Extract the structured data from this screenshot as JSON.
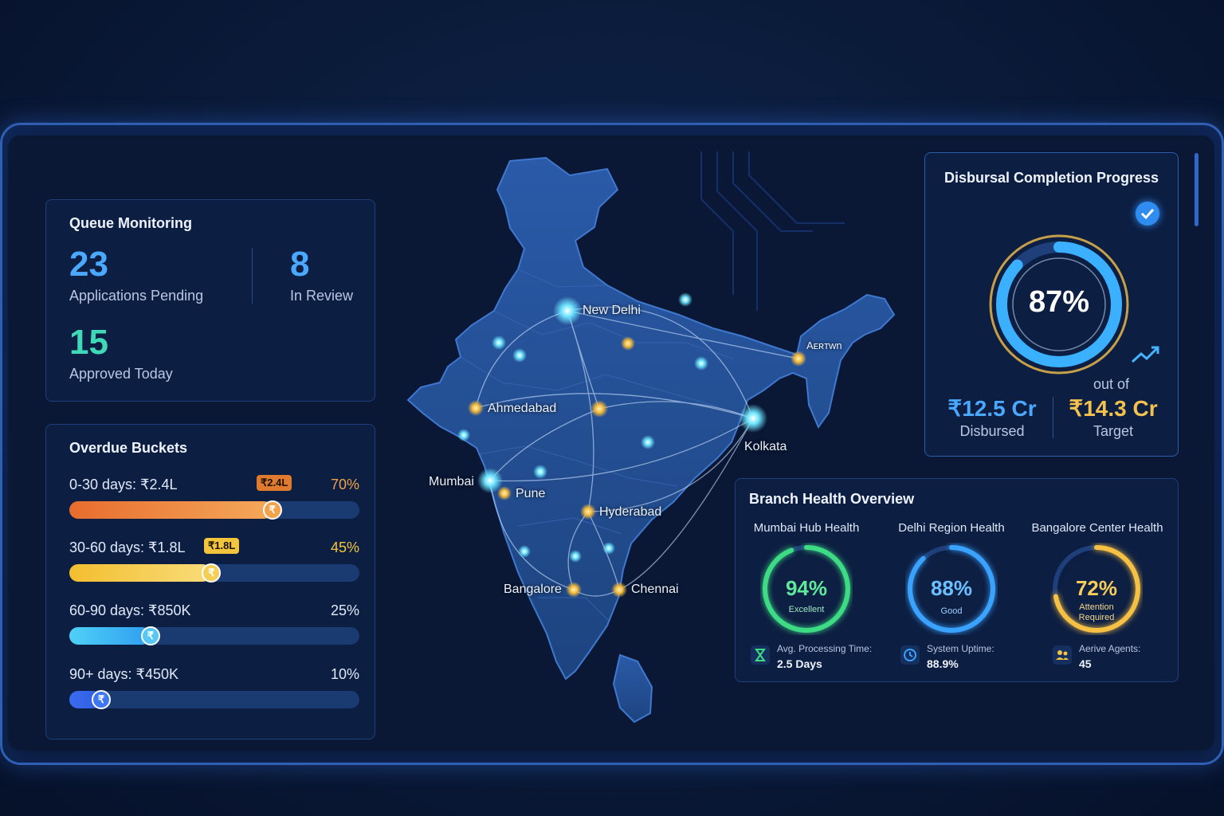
{
  "queue": {
    "title": "Queue Monitoring",
    "pending_value": "23",
    "pending_label": "Applications Pending",
    "review_value": "8",
    "review_label": "In Review",
    "approved_value": "15",
    "approved_label": "Approved Today"
  },
  "overdue": {
    "title": "Overdue Buckets",
    "buckets": [
      {
        "label": "0-30 days: ₹2.4L",
        "tag": "₹2.4L",
        "percent_text": "70%",
        "percent": 70,
        "color": "#f08a3c"
      },
      {
        "label": "30-60 days: ₹1.8L",
        "tag": "₹1.8L",
        "percent_text": "45%",
        "percent": 45,
        "color": "#f2c53d"
      },
      {
        "label": "60-90 days: ₹850K",
        "tag": "",
        "percent_text": "25%",
        "percent": 25,
        "color": "#39b8f0"
      },
      {
        "label": "90+ days: ₹450K",
        "tag": "",
        "percent_text": "10%",
        "percent": 10,
        "color": "#2f6ff0"
      }
    ],
    "knob_symbol": "₹"
  },
  "map": {
    "cities": [
      "New Delhi",
      "Aᴇʀᴛwn",
      "Ahmedabad",
      "Kolkata",
      "Mumbai",
      "Pune",
      "Hyderabad",
      "Bangalore",
      "Chennai"
    ]
  },
  "disbursal": {
    "title": "Disbursal Completion Progress",
    "percent_text": "87%",
    "percent": 87,
    "out_of": "out of",
    "disbursed_value": "₹12.5 Cr",
    "disbursed_label": "Disbursed",
    "target_value": "₹14.3 Cr",
    "target_label": "Target"
  },
  "branch": {
    "title": "Branch Health Overview",
    "gauges": [
      {
        "title": "Mumbai Hub Health",
        "value_text": "94%",
        "value": 94,
        "status": "Excellent",
        "color": "#3ddc84",
        "metric_label": "Avg. Processing Time:",
        "metric_value": "2.5 Days",
        "icon": "hourglass-icon"
      },
      {
        "title": "Delhi Region Health",
        "value_text": "88%",
        "value": 88,
        "status": "Good",
        "color": "#3aa2ff",
        "metric_label": "System Uptime:",
        "metric_value": "88.9%",
        "icon": "clock-icon"
      },
      {
        "title": "Bangalore Center Health",
        "value_text": "72%",
        "value": 72,
        "status": "Attention Required",
        "color": "#f5c043",
        "metric_label": "Aerive Agents:",
        "metric_value": "45",
        "icon": "users-icon"
      }
    ]
  }
}
